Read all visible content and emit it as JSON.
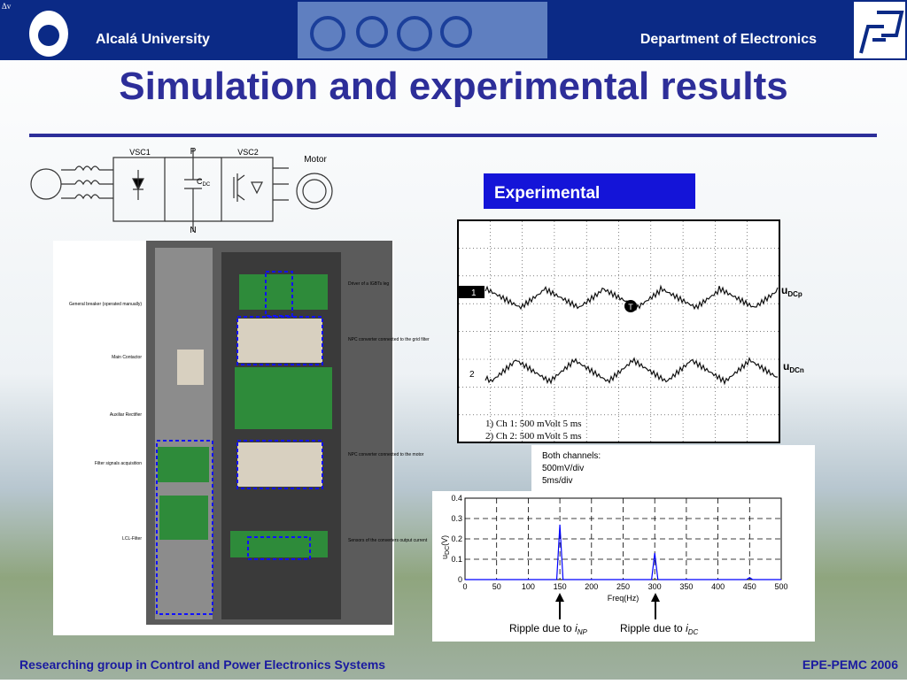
{
  "header": {
    "left": "Alcalá University",
    "right": "Department of Electronics",
    "corner": "Δv"
  },
  "title": "Simulation and experimental results",
  "circuit": {
    "vsc1": "VSC1",
    "vsc2": "VSC2",
    "p": "P",
    "n": "N",
    "motor": "Motor",
    "cap": "C",
    "cap_sub": "DC"
  },
  "photo_labels": {
    "left": [
      "General breaker (operated manually)",
      "Main Contactor",
      "Auxiliar Rectifier",
      "Filter signals acquisition",
      "LCL-Filter"
    ],
    "right": [
      "Driver of a IGBTs leg",
      "NPC converter connected to the grid filter",
      "NPC converter connected to the motor",
      "Sensors of the converters output current"
    ]
  },
  "experimental": {
    "badge": "Experimental",
    "ch1_marker": "1",
    "ch2_marker": "2",
    "trigger": "T",
    "u1": "u",
    "u1_sub": "DCp",
    "u2": "u",
    "u2_sub": "DCn",
    "legend": [
      "1) Ch 1:    500 mVolt  5 ms",
      "2) Ch 2:    500 mVolt  5 ms"
    ],
    "note": [
      "Both channels:",
      "500mV/div",
      "5ms/div"
    ]
  },
  "chart_data": {
    "type": "line",
    "x_label": "Freq(Hz)",
    "y_label": "u",
    "y_label_sub": "DC",
    "y_label_unit": "(V)",
    "x": [
      0,
      145,
      150,
      155,
      295,
      300,
      305,
      445,
      450,
      455,
      500
    ],
    "series": [
      {
        "color": "#0000ff",
        "values": [
          0,
          0,
          0.27,
          0,
          0,
          0.13,
          0,
          0,
          0.01,
          0,
          0
        ]
      }
    ],
    "xlim": [
      0,
      500
    ],
    "ylim": [
      0,
      0.4
    ],
    "xticks": [
      0,
      50,
      100,
      150,
      200,
      250,
      300,
      350,
      400,
      450,
      500
    ],
    "yticks": [
      0,
      0.1,
      0.2,
      0.3,
      0.4
    ],
    "grid": true,
    "annotations": [
      {
        "text": "Ripple due to ",
        "var": "i",
        "sub": "NP"
      },
      {
        "text": "Ripple due to ",
        "var": "i",
        "sub": "DC"
      }
    ]
  },
  "footer": {
    "left": "Researching group in Control and Power Electronics Systems",
    "right": "EPE-PEMC 2006"
  }
}
